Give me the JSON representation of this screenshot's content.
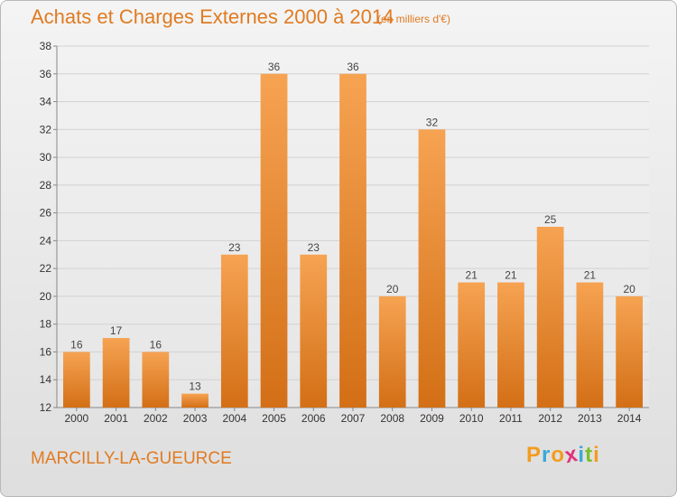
{
  "title": "Achats et Charges Externes 2000 à 2014",
  "subtitle": "(en milliers d'€)",
  "commune": "MARCILLY-LA-GUEURCE",
  "logo": {
    "letters": [
      "P",
      "r",
      "o",
      "x",
      "i",
      "t",
      "i"
    ],
    "colors": [
      "#f39c1e",
      "#3aa8d8",
      "#f39c1e",
      "#e2337a",
      "#3aa8d8",
      "#7bbf2a",
      "#f39c1e"
    ]
  },
  "colors": {
    "accent": "#e07b22",
    "bar_light": "#f6a352",
    "bar_dark": "#d36f16"
  },
  "chart_data": {
    "type": "bar",
    "title": "Achats et Charges Externes 2000 à 2014",
    "subtitle": "(en milliers d'€)",
    "xlabel": "",
    "ylabel": "",
    "categories": [
      "2000",
      "2001",
      "2002",
      "2003",
      "2004",
      "2005",
      "2006",
      "2007",
      "2008",
      "2009",
      "2010",
      "2011",
      "2012",
      "2013",
      "2014"
    ],
    "values": [
      16,
      17,
      16,
      13,
      23,
      36,
      23,
      36,
      20,
      32,
      21,
      21,
      25,
      21,
      20
    ],
    "ylim": [
      12,
      38
    ],
    "yticks": [
      12,
      14,
      16,
      18,
      20,
      22,
      24,
      26,
      28,
      30,
      32,
      34,
      36,
      38
    ],
    "grid": true,
    "legend": "none"
  }
}
